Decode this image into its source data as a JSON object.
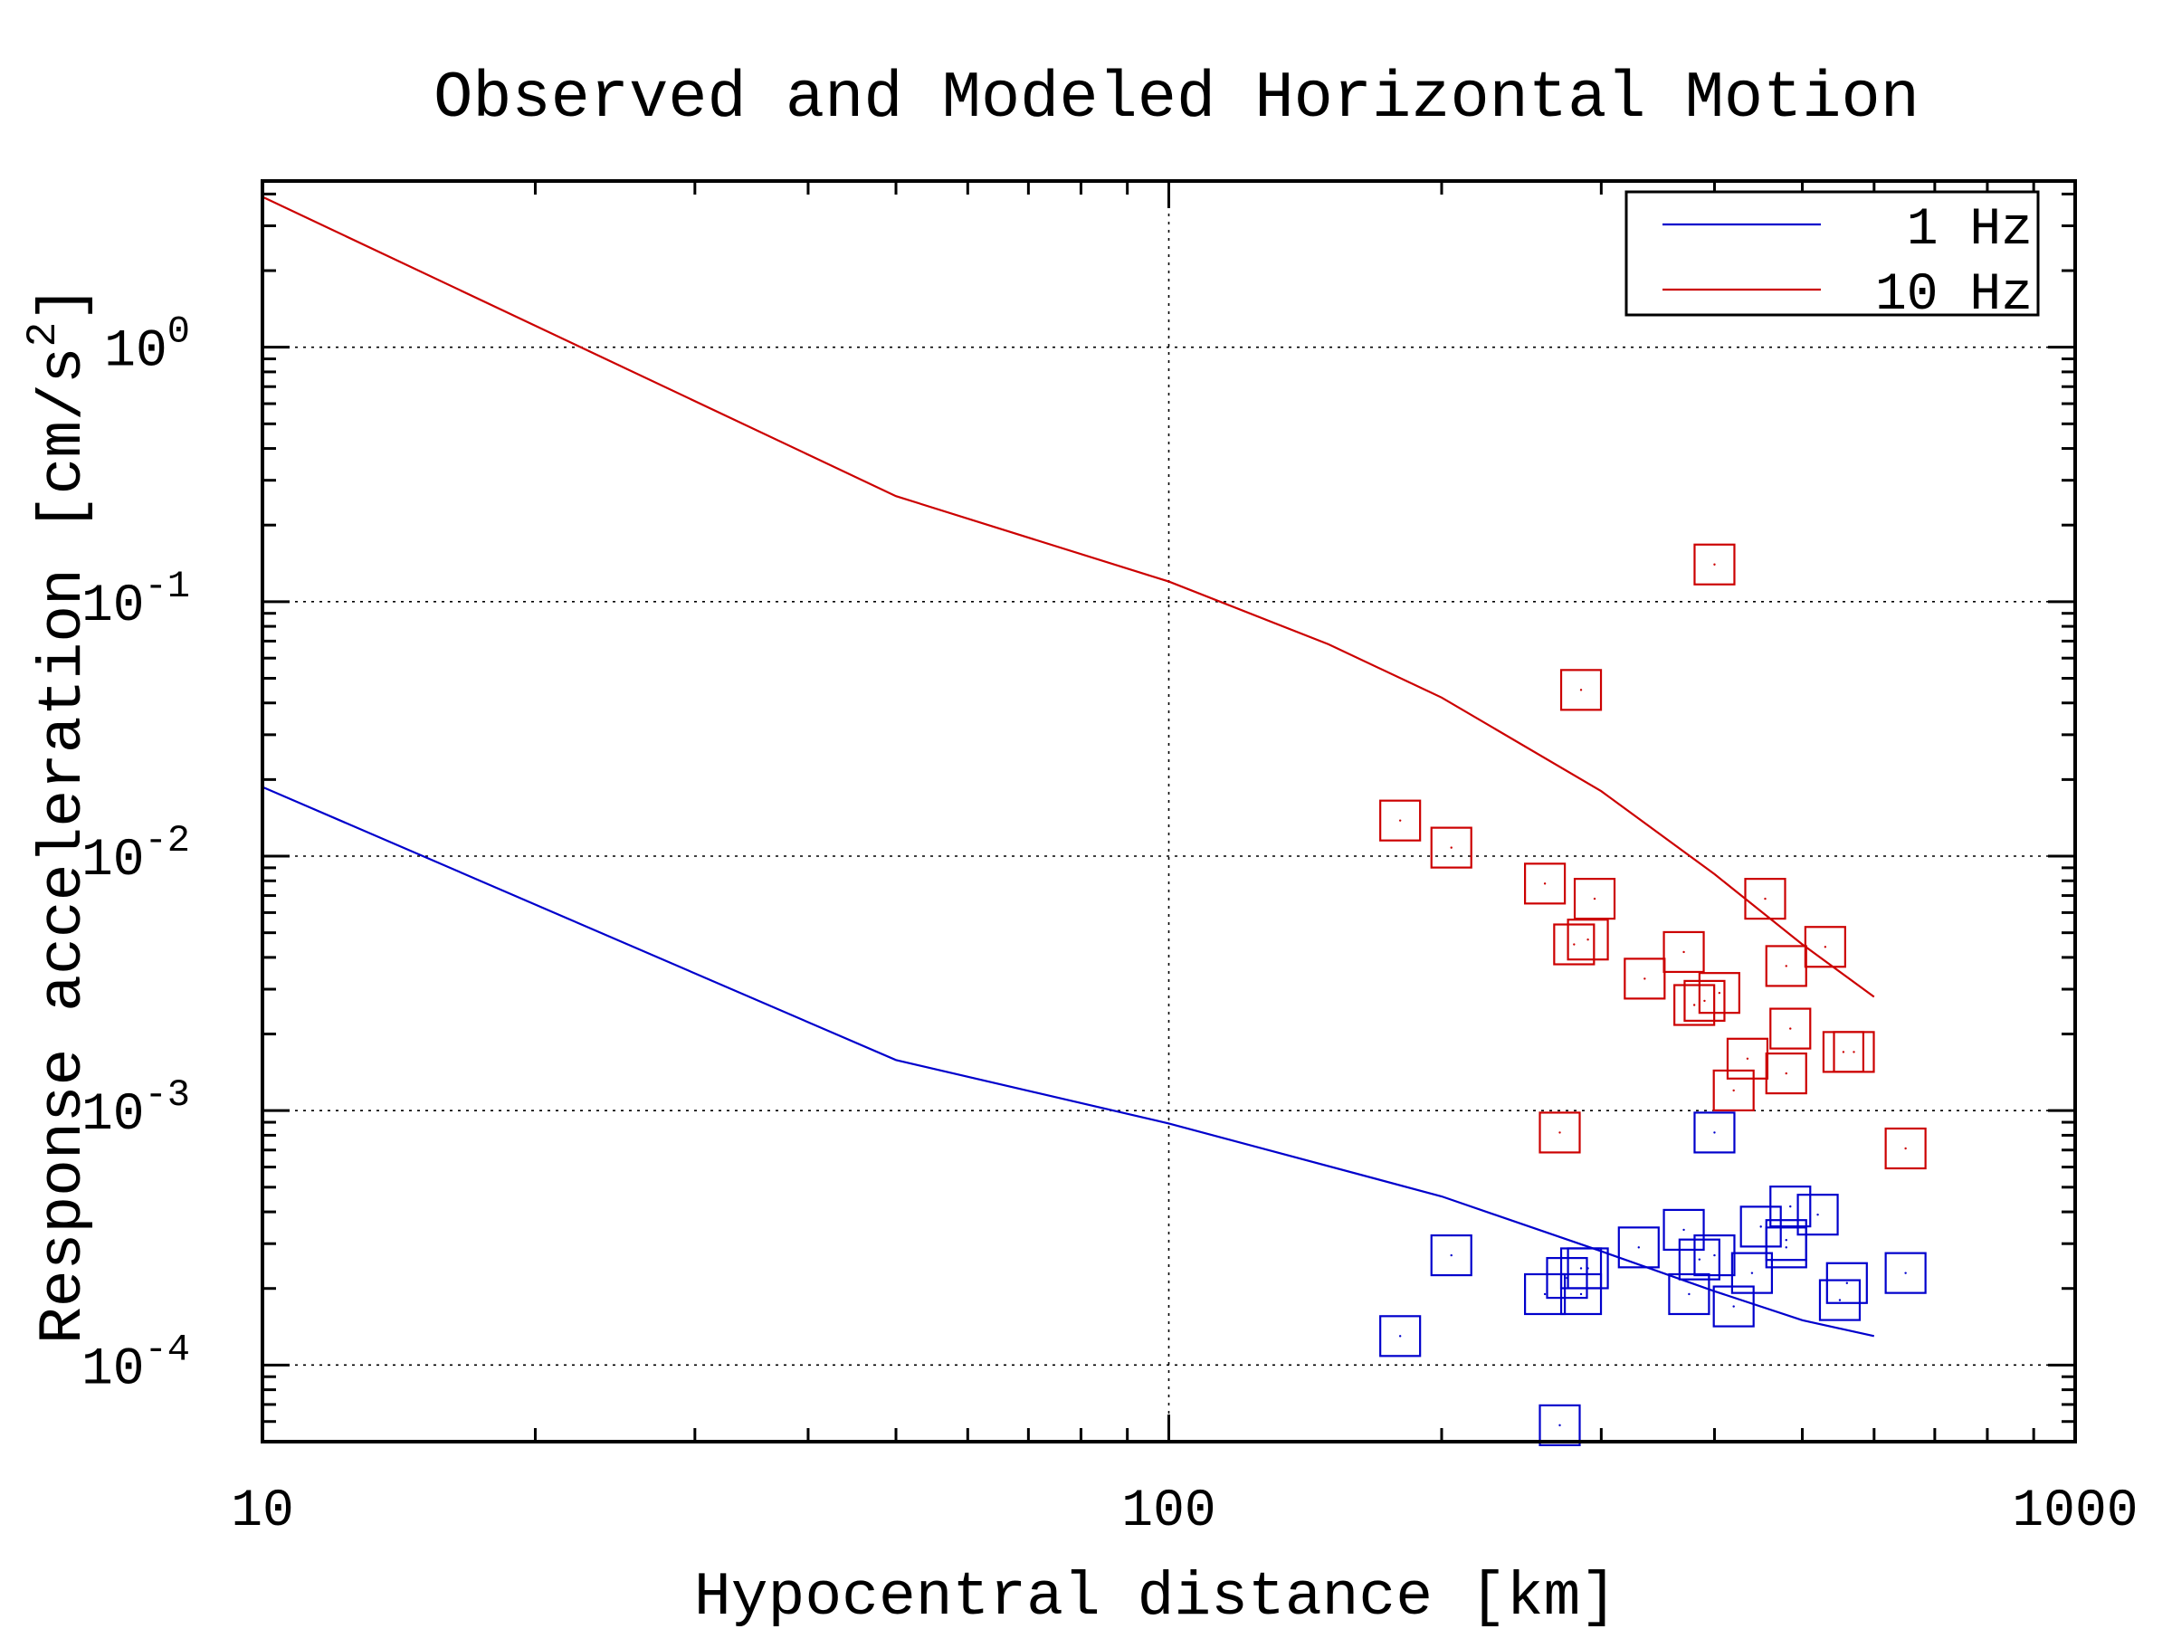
{
  "chart_data": {
    "type": "line+scatter",
    "title": "Observed and Modeled Horizontal Motion",
    "xlabel": "Hypocentral distance [km]",
    "ylabel": "Response acceleration [cm/s",
    "ylabel_sup": "2",
    "ylabel_close": "]",
    "x_scale": "log",
    "y_scale": "log",
    "xlim": [
      10,
      1000
    ],
    "ylim": [
      5e-05,
      4.5
    ],
    "x_ticks": [
      10,
      100,
      1000
    ],
    "x_tick_labels": [
      "10",
      "100",
      "1000"
    ],
    "y_ticks": [
      0.0001,
      0.001,
      0.01,
      0.1,
      1
    ],
    "y_tick_labels": [
      {
        "base": "10",
        "exp": "-4"
      },
      {
        "base": "10",
        "exp": "-3"
      },
      {
        "base": "10",
        "exp": "-2"
      },
      {
        "base": "10",
        "exp": "-1"
      },
      {
        "base": "10",
        "exp": "0"
      }
    ],
    "grid": true,
    "legend_position": "top-right",
    "series": [
      {
        "name": "1 Hz",
        "color": "#0000cc",
        "line": [
          [
            10,
            0.0187
          ],
          [
            50,
            0.00158
          ],
          [
            100,
            0.00089
          ],
          [
            200,
            0.00046
          ],
          [
            300,
            0.00028
          ],
          [
            400,
            0.000195
          ],
          [
            500,
            0.00015
          ],
          [
            600,
            0.00013
          ]
        ],
        "points": [
          [
            180,
            0.00013
          ],
          [
            205,
            0.00027
          ],
          [
            260,
            0.00019
          ],
          [
            270,
            5.8e-05
          ],
          [
            275,
            0.00022
          ],
          [
            285,
            0.00019
          ],
          [
            285,
            0.00024
          ],
          [
            290,
            0.00024
          ],
          [
            330,
            0.00029
          ],
          [
            370,
            0.00034
          ],
          [
            375,
            0.00019
          ],
          [
            385,
            0.00026
          ],
          [
            400,
            0.00027
          ],
          [
            400,
            0.00082
          ],
          [
            420,
            0.00017
          ],
          [
            440,
            0.00023
          ],
          [
            450,
            0.00035
          ],
          [
            480,
            0.00029
          ],
          [
            480,
            0.00031
          ],
          [
            485,
            0.00042
          ],
          [
            520,
            0.00039
          ],
          [
            550,
            0.00018
          ],
          [
            560,
            0.00021
          ],
          [
            650,
            0.00023
          ]
        ]
      },
      {
        "name": "10 Hz",
        "color": "#cc0000",
        "line": [
          [
            10,
            3.9
          ],
          [
            50,
            0.26
          ],
          [
            100,
            0.12
          ],
          [
            150,
            0.068
          ],
          [
            200,
            0.042
          ],
          [
            300,
            0.018
          ],
          [
            400,
            0.0085
          ],
          [
            500,
            0.0045
          ],
          [
            600,
            0.0028
          ]
        ],
        "points": [
          [
            180,
            0.0138
          ],
          [
            205,
            0.0108
          ],
          [
            260,
            0.0078
          ],
          [
            270,
            0.00082
          ],
          [
            280,
            0.0045
          ],
          [
            285,
            0.045
          ],
          [
            290,
            0.0047
          ],
          [
            295,
            0.0068
          ],
          [
            335,
            0.0033
          ],
          [
            370,
            0.0042
          ],
          [
            380,
            0.0026
          ],
          [
            390,
            0.0027
          ],
          [
            400,
            0.14
          ],
          [
            405,
            0.0029
          ],
          [
            420,
            0.0012
          ],
          [
            435,
            0.0016
          ],
          [
            455,
            0.0068
          ],
          [
            480,
            0.0014
          ],
          [
            480,
            0.0037
          ],
          [
            485,
            0.0021
          ],
          [
            530,
            0.0044
          ],
          [
            555,
            0.0017
          ],
          [
            570,
            0.0017
          ],
          [
            650,
            0.00071
          ]
        ]
      }
    ]
  }
}
